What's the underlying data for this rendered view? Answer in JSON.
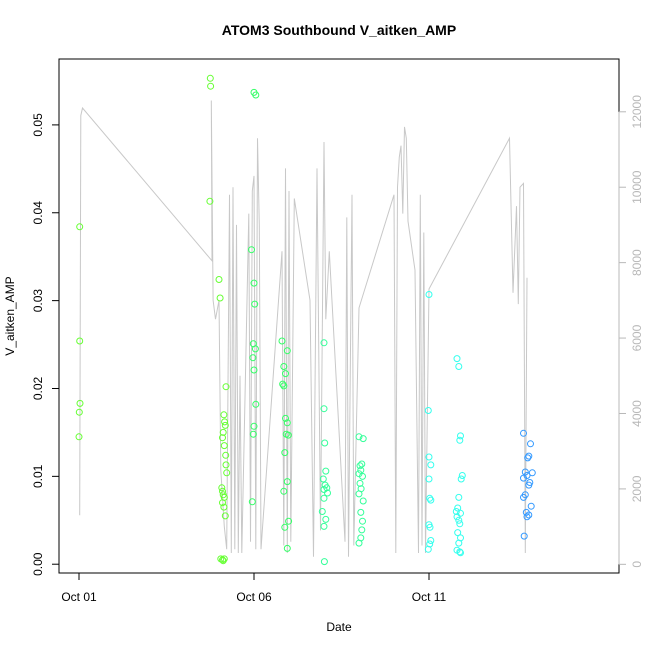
{
  "chart_data": {
    "type": "scatter",
    "title": "ATOM3 Southbound V_aitken_AMP",
    "xlabel": "Date",
    "ylabel": "V_aitken_AMP",
    "x_axis": {
      "range_days": [
        0.0,
        16.0
      ],
      "ticks": [
        {
          "label": "Oct 01",
          "day": 0
        },
        {
          "label": "Oct 06",
          "day": 5
        },
        {
          "label": "Oct 11",
          "day": 10
        }
      ]
    },
    "y_axis_left": {
      "range": [
        -0.001,
        0.0575
      ],
      "ticks": [
        {
          "label": "0.00",
          "value": 0.0
        },
        {
          "label": "0.01",
          "value": 0.01
        },
        {
          "label": "0.02",
          "value": 0.02
        },
        {
          "label": "0.03",
          "value": 0.03
        },
        {
          "label": "0.04",
          "value": 0.04
        },
        {
          "label": "0.05",
          "value": 0.05
        }
      ]
    },
    "y_axis_right": {
      "range": [
        -230,
        13400
      ],
      "color": "#b8b8b8",
      "ticks": [
        {
          "label": "0",
          "value": 0
        },
        {
          "label": "2000",
          "value": 2000
        },
        {
          "label": "4000",
          "value": 4000
        },
        {
          "label": "6000",
          "value": 6000
        },
        {
          "label": "8000",
          "value": 8000
        },
        {
          "label": "10000",
          "value": 10000
        },
        {
          "label": "12000",
          "value": 12000
        }
      ]
    },
    "grid": false,
    "legend": "none",
    "point_color_scale": [
      "#66ff33",
      "#33ff66",
      "#33ffcc",
      "#33ccff",
      "#3399ff"
    ],
    "secondary_line": {
      "color": "#c8c8c8",
      "points": [
        [
          0.02,
          1300
        ],
        [
          0.05,
          11900
        ],
        [
          0.1,
          12100
        ],
        [
          3.8,
          8050
        ],
        [
          3.78,
          12300
        ],
        [
          3.83,
          7000
        ],
        [
          3.9,
          6500
        ],
        [
          4.0,
          7000
        ],
        [
          4.05,
          2500
        ],
        [
          4.15,
          1000
        ],
        [
          4.22,
          400
        ],
        [
          4.3,
          9800
        ],
        [
          4.35,
          300
        ],
        [
          4.4,
          10000
        ],
        [
          4.45,
          400
        ],
        [
          4.5,
          9000
        ],
        [
          4.55,
          300
        ],
        [
          4.6,
          5000
        ],
        [
          4.65,
          300
        ],
        [
          4.85,
          9300
        ],
        [
          4.9,
          600
        ],
        [
          4.95,
          9900
        ],
        [
          5.0,
          10300
        ],
        [
          5.05,
          400
        ],
        [
          5.1,
          11300
        ],
        [
          5.15,
          9000
        ],
        [
          5.2,
          400
        ],
        [
          5.8,
          8300
        ],
        [
          5.85,
          500
        ],
        [
          5.9,
          10500
        ],
        [
          5.95,
          300
        ],
        [
          6.0,
          9900
        ],
        [
          6.05,
          600
        ],
        [
          6.15,
          9700
        ],
        [
          6.6,
          7000
        ],
        [
          6.7,
          200
        ],
        [
          6.8,
          10500
        ],
        [
          6.9,
          900
        ],
        [
          7.0,
          11200
        ],
        [
          7.05,
          6500
        ],
        [
          7.15,
          8300
        ],
        [
          7.6,
          600
        ],
        [
          7.65,
          9200
        ],
        [
          7.7,
          200
        ],
        [
          7.8,
          9800
        ],
        [
          7.85,
          500
        ],
        [
          8.0,
          6800
        ],
        [
          9.0,
          9800
        ],
        [
          9.05,
          300
        ],
        [
          9.1,
          10000
        ],
        [
          9.15,
          10800
        ],
        [
          9.2,
          11100
        ],
        [
          9.25,
          9300
        ],
        [
          9.3,
          11600
        ],
        [
          9.35,
          11300
        ],
        [
          9.4,
          9100
        ],
        [
          9.6,
          7800
        ],
        [
          9.7,
          300
        ],
        [
          9.75,
          9800
        ],
        [
          9.8,
          500
        ],
        [
          9.85,
          8800
        ],
        [
          9.9,
          300
        ],
        [
          10.0,
          7300
        ],
        [
          12.3,
          11300
        ],
        [
          12.4,
          7200
        ],
        [
          12.5,
          9500
        ],
        [
          12.55,
          6900
        ],
        [
          12.6,
          10000
        ],
        [
          12.7,
          10100
        ],
        [
          12.75,
          300
        ],
        [
          12.8,
          7600
        ]
      ]
    },
    "series": [
      {
        "color": "#66ff33",
        "points": [
          [
            0.02,
            0.0384
          ],
          [
            0.02,
            0.0254
          ],
          [
            0.03,
            0.0183
          ],
          [
            0.01,
            0.0173
          ],
          [
            0.0,
            0.0145
          ],
          [
            3.75,
            0.0553
          ],
          [
            3.76,
            0.0544
          ],
          [
            3.74,
            0.0413
          ],
          [
            4.0,
            0.0324
          ],
          [
            4.03,
            0.0303
          ],
          [
            4.1,
            0.0144
          ],
          [
            4.2,
            0.0202
          ],
          [
            4.14,
            0.017
          ],
          [
            4.16,
            0.0162
          ],
          [
            4.18,
            0.0158
          ],
          [
            4.12,
            0.015
          ],
          [
            4.15,
            0.0135
          ],
          [
            4.19,
            0.0124
          ],
          [
            4.2,
            0.0113
          ],
          [
            4.22,
            0.0104
          ],
          [
            4.08,
            0.0087
          ],
          [
            4.1,
            0.0083
          ],
          [
            4.12,
            0.0079
          ],
          [
            4.15,
            0.0076
          ],
          [
            4.1,
            0.007
          ],
          [
            4.14,
            0.0065
          ],
          [
            4.18,
            0.0055
          ],
          [
            4.05,
            0.0006
          ],
          [
            4.1,
            0.0005
          ],
          [
            4.12,
            0.0004
          ],
          [
            4.15,
            0.0006
          ]
        ]
      },
      {
        "color": "#33ff66",
        "points": [
          [
            5.0,
            0.0537
          ],
          [
            5.05,
            0.0534
          ],
          [
            4.93,
            0.0358
          ],
          [
            5.0,
            0.032
          ],
          [
            5.02,
            0.0296
          ],
          [
            4.98,
            0.0251
          ],
          [
            5.04,
            0.0245
          ],
          [
            4.97,
            0.0235
          ],
          [
            5.0,
            0.0221
          ],
          [
            5.05,
            0.0182
          ],
          [
            5.0,
            0.0157
          ],
          [
            4.98,
            0.0148
          ],
          [
            4.95,
            0.0071
          ],
          [
            5.8,
            0.0254
          ],
          [
            5.95,
            0.0243
          ],
          [
            5.85,
            0.0225
          ],
          [
            5.9,
            0.0217
          ],
          [
            5.82,
            0.0205
          ],
          [
            5.85,
            0.0203
          ],
          [
            5.9,
            0.0166
          ],
          [
            5.95,
            0.0161
          ],
          [
            5.92,
            0.0148
          ],
          [
            5.98,
            0.0147
          ],
          [
            5.88,
            0.0127
          ],
          [
            5.95,
            0.0094
          ],
          [
            5.85,
            0.0083
          ],
          [
            5.99,
            0.0049
          ],
          [
            5.88,
            0.0042
          ],
          [
            5.95,
            0.0018
          ]
        ]
      },
      {
        "color": "#33ff99",
        "points": [
          [
            7.0,
            0.0252
          ],
          [
            7.0,
            0.0177
          ],
          [
            7.02,
            0.0138
          ],
          [
            7.05,
            0.0106
          ],
          [
            6.98,
            0.0097
          ],
          [
            7.03,
            0.009
          ],
          [
            7.08,
            0.0087
          ],
          [
            7.0,
            0.0085
          ],
          [
            7.1,
            0.0081
          ],
          [
            7.0,
            0.0075
          ],
          [
            6.95,
            0.006
          ],
          [
            7.05,
            0.0051
          ],
          [
            7.0,
            0.0043
          ],
          [
            7.01,
            0.0003
          ],
          [
            8.0,
            0.0145
          ],
          [
            8.12,
            0.0143
          ],
          [
            8.08,
            0.0114
          ],
          [
            8.03,
            0.0112
          ],
          [
            8.05,
            0.0107
          ],
          [
            8.0,
            0.0103
          ],
          [
            8.1,
            0.01
          ],
          [
            8.03,
            0.0092
          ],
          [
            8.06,
            0.0086
          ],
          [
            8.0,
            0.008
          ],
          [
            8.12,
            0.0072
          ],
          [
            8.05,
            0.0059
          ],
          [
            8.1,
            0.0049
          ],
          [
            8.08,
            0.0039
          ],
          [
            8.05,
            0.003
          ],
          [
            8.0,
            0.0024
          ]
        ]
      },
      {
        "color": "#33ffee",
        "points": [
          [
            10.0,
            0.0307
          ],
          [
            9.98,
            0.0175
          ],
          [
            10.0,
            0.0122
          ],
          [
            10.05,
            0.0113
          ],
          [
            10.0,
            0.0097
          ],
          [
            10.02,
            0.0075
          ],
          [
            10.05,
            0.0073
          ],
          [
            10.0,
            0.0045
          ],
          [
            10.03,
            0.0042
          ],
          [
            10.05,
            0.0027
          ],
          [
            10.02,
            0.0023
          ],
          [
            9.98,
            0.0017
          ],
          [
            10.8,
            0.0234
          ],
          [
            10.85,
            0.0225
          ],
          [
            10.9,
            0.0146
          ],
          [
            10.88,
            0.0141
          ],
          [
            10.95,
            0.0101
          ],
          [
            10.92,
            0.0097
          ],
          [
            10.85,
            0.0076
          ],
          [
            10.82,
            0.0064
          ],
          [
            10.78,
            0.006
          ],
          [
            10.9,
            0.0058
          ],
          [
            10.8,
            0.0054
          ],
          [
            10.85,
            0.005
          ],
          [
            10.88,
            0.0046
          ],
          [
            10.82,
            0.0036
          ],
          [
            10.9,
            0.003
          ],
          [
            10.85,
            0.0024
          ],
          [
            10.8,
            0.0016
          ],
          [
            10.88,
            0.0014
          ],
          [
            10.9,
            0.0013
          ]
        ]
      },
      {
        "color": "#3399ff",
        "points": [
          [
            12.7,
            0.0149
          ],
          [
            12.9,
            0.0137
          ],
          [
            12.85,
            0.0123
          ],
          [
            12.82,
            0.0121
          ],
          [
            12.75,
            0.0105
          ],
          [
            12.95,
            0.0104
          ],
          [
            12.8,
            0.0101
          ],
          [
            12.7,
            0.0098
          ],
          [
            12.88,
            0.0093
          ],
          [
            12.85,
            0.009
          ],
          [
            12.75,
            0.0079
          ],
          [
            12.7,
            0.0076
          ],
          [
            12.92,
            0.0066
          ],
          [
            12.78,
            0.0059
          ],
          [
            12.85,
            0.0056
          ],
          [
            12.8,
            0.0054
          ],
          [
            12.72,
            0.0032
          ]
        ]
      }
    ]
  }
}
